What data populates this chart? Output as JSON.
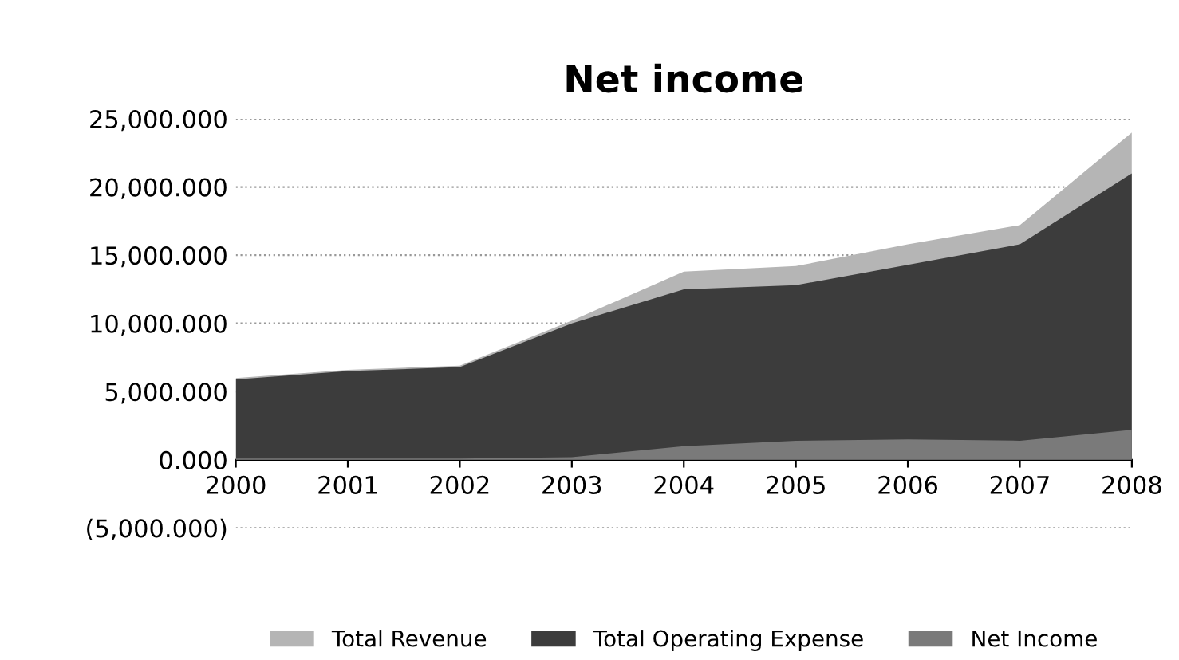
{
  "chart_data": {
    "type": "area",
    "title": "Net income",
    "categories": [
      "2000",
      "2001",
      "2002",
      "2003",
      "2004",
      "2005",
      "2006",
      "2007",
      "2008"
    ],
    "series": [
      {
        "name": "Total Revenue",
        "color": "#b5b5b5",
        "values": [
          6000,
          6600,
          6900,
          10200,
          13800,
          14200,
          15800,
          17200,
          24000
        ]
      },
      {
        "name": "Total Operating Expense",
        "color": "#3c3c3c",
        "values": [
          5900,
          6500,
          6800,
          10000,
          12500,
          12800,
          14300,
          15800,
          21000
        ]
      },
      {
        "name": "Net Income",
        "color": "#7a7a7a",
        "values": [
          100,
          100,
          100,
          200,
          1000,
          1400,
          1500,
          1400,
          2200
        ]
      }
    ],
    "ylim": [
      -5000,
      25000
    ],
    "yticks": [
      {
        "value": -5000,
        "label": "(5,000.000)"
      },
      {
        "value": 0,
        "label": "0.000"
      },
      {
        "value": 5000,
        "label": "5,000.000"
      },
      {
        "value": 10000,
        "label": "10,000.000"
      },
      {
        "value": 15000,
        "label": "15,000.000"
      },
      {
        "value": 20000,
        "label": "20,000.000"
      },
      {
        "value": 25000,
        "label": "25,000.000"
      }
    ],
    "grid": "y",
    "legend": "bottom"
  }
}
